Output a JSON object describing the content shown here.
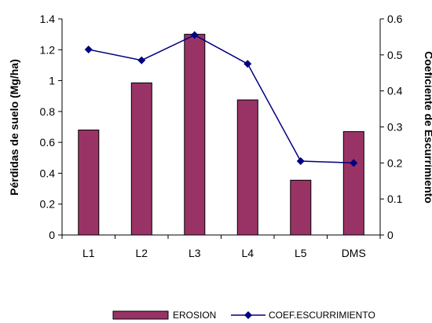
{
  "chart_data": {
    "type": "bar",
    "categories": [
      "L1",
      "L2",
      "L3",
      "L4",
      "L5",
      "DMS"
    ],
    "series": [
      {
        "name": "EROSION",
        "type": "bar",
        "axis": "left",
        "values": [
          0.68,
          0.985,
          1.3,
          0.875,
          0.355,
          0.67
        ]
      },
      {
        "name": "COEF.ESCURRIMIENTO",
        "type": "line",
        "axis": "right",
        "values": [
          0.515,
          0.485,
          0.555,
          0.475,
          0.205,
          0.2
        ]
      }
    ],
    "ylabel": "Pérdidas de suelo (Mg/ha)",
    "y2label": "Coeficiente de Escurrimiento",
    "ylim": [
      0,
      1.4
    ],
    "y2lim": [
      0,
      0.6
    ],
    "yticks": [
      "0",
      "0.2",
      "0.4",
      "0.6",
      "0.8",
      "1",
      "1.2",
      "1.4"
    ],
    "y2ticks": [
      "0",
      "0.1",
      "0.2",
      "0.3",
      "0.4",
      "0.5",
      "0.6"
    ],
    "legend_position": "bottom",
    "grid": false
  },
  "colors": {
    "bar": "#993366",
    "line": "#000080",
    "axis": "#000000"
  }
}
